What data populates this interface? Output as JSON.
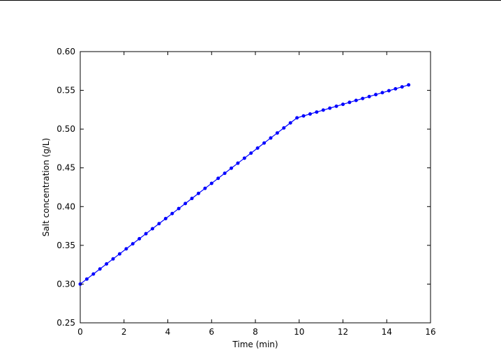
{
  "chart_data": {
    "type": "line",
    "title": "",
    "xlabel": "Time (min)",
    "ylabel": "Salt concentration (g/L)",
    "xlim": [
      0,
      16
    ],
    "ylim": [
      0.25,
      0.6
    ],
    "xticks": [
      0,
      2,
      4,
      6,
      8,
      10,
      12,
      14,
      16
    ],
    "yticks": [
      0.25,
      0.3,
      0.35,
      0.4,
      0.45,
      0.5,
      0.55,
      0.6
    ],
    "xtick_labels": [
      "0",
      "2",
      "4",
      "6",
      "8",
      "10",
      "12",
      "14",
      "16"
    ],
    "ytick_labels": [
      "0.25",
      "0.30",
      "0.35",
      "0.40",
      "0.45",
      "0.50",
      "0.55",
      "0.60"
    ],
    "grid": false,
    "legend": "none",
    "series": [
      {
        "color": "#0000ff",
        "marker": "dot",
        "x": [
          0,
          0.3,
          0.6,
          0.9,
          1.2,
          1.5,
          1.8,
          2.1,
          2.4,
          2.7,
          3.0,
          3.3,
          3.6,
          3.9,
          4.2,
          4.5,
          4.8,
          5.1,
          5.4,
          5.7,
          6.0,
          6.3,
          6.6,
          6.9,
          7.2,
          7.5,
          7.8,
          8.1,
          8.4,
          8.7,
          9.0,
          9.3,
          9.6,
          9.9,
          10.2,
          10.5,
          10.8,
          11.1,
          11.4,
          11.7,
          12.0,
          12.3,
          12.6,
          12.9,
          13.2,
          13.5,
          13.8,
          14.1,
          14.4,
          14.7,
          15.0
        ],
        "y": [
          0.3,
          0.3065,
          0.313,
          0.3195,
          0.326,
          0.3325,
          0.339,
          0.3455,
          0.352,
          0.3585,
          0.365,
          0.3715,
          0.378,
          0.3845,
          0.391,
          0.3975,
          0.404,
          0.4105,
          0.417,
          0.4235,
          0.43,
          0.4365,
          0.443,
          0.4495,
          0.456,
          0.4625,
          0.469,
          0.4755,
          0.482,
          0.4885,
          0.495,
          0.5015,
          0.508,
          0.5145,
          0.517,
          0.5195,
          0.522,
          0.5245,
          0.527,
          0.5295,
          0.532,
          0.5345,
          0.537,
          0.5395,
          0.542,
          0.5445,
          0.547,
          0.5495,
          0.552,
          0.5545,
          0.557
        ]
      }
    ]
  }
}
